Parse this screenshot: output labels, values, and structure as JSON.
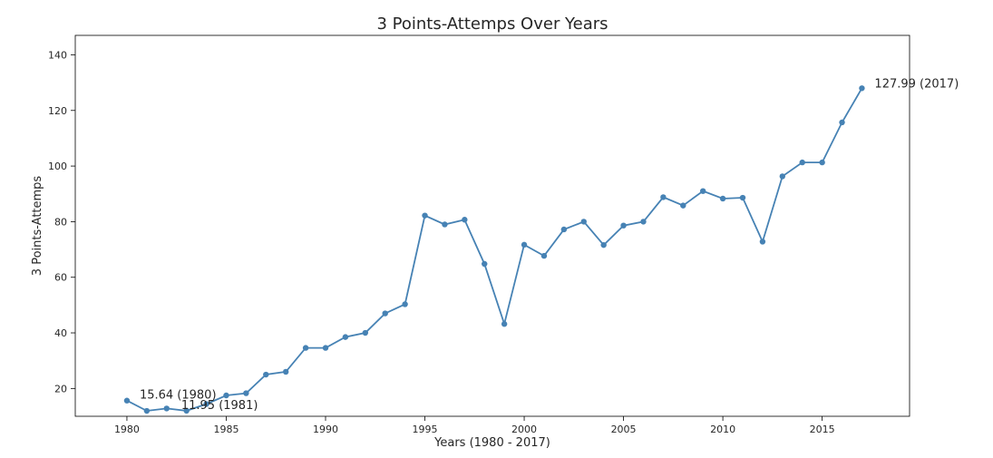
{
  "chart_data": {
    "type": "line",
    "title": "3 Points-Attemps Over Years",
    "xlabel": "Years (1980 - 2017)",
    "ylabel": "3 Points-Attemps",
    "xlim": [
      1977.4,
      2019.4
    ],
    "ylim": [
      10,
      147
    ],
    "xticks": [
      1980,
      1985,
      1990,
      1995,
      2000,
      2005,
      2010,
      2015
    ],
    "yticks": [
      20,
      40,
      60,
      80,
      100,
      120,
      140
    ],
    "grid": false,
    "legend": "none",
    "color": "#4682b4",
    "series": [
      {
        "x": [
          1980,
          1981,
          1982,
          1983,
          1984,
          1985,
          1986,
          1987,
          1988,
          1989,
          1990,
          1991,
          1992,
          1993,
          1994,
          1995,
          1996,
          1997,
          1998,
          1999,
          2000,
          2001,
          2002,
          2003,
          2004,
          2005,
          2006,
          2007,
          2008,
          2009,
          2010,
          2011,
          2012,
          2013,
          2014,
          2015,
          2016,
          2017
        ],
        "values": [
          15.64,
          11.95,
          12.8,
          12.0,
          14.4,
          17.5,
          18.3,
          25.0,
          26.0,
          34.6,
          34.6,
          38.5,
          40.0,
          47.0,
          50.3,
          82.2,
          79.0,
          80.7,
          64.8,
          43.2,
          71.7,
          67.7,
          77.2,
          80.0,
          71.6,
          78.6,
          80.0,
          88.8,
          85.8,
          91.0,
          88.3,
          88.6,
          72.8,
          96.3,
          101.3,
          101.3,
          115.7,
          127.99
        ]
      }
    ],
    "annotations": [
      {
        "text": "15.64 (1980)",
        "x": 1980,
        "y": 15.64
      },
      {
        "text": "11.95 (1981)",
        "x": 1981,
        "y": 11.95
      },
      {
        "text": "127.99 (2017)",
        "x": 2017,
        "y": 127.99
      }
    ]
  }
}
